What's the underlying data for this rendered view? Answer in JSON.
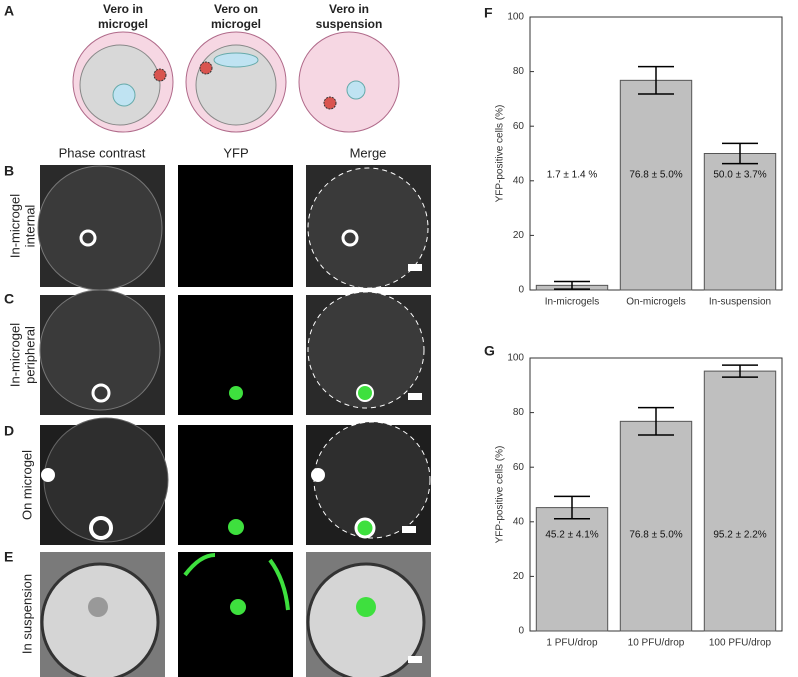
{
  "figure": {
    "panel_letters": [
      "A",
      "B",
      "C",
      "D",
      "E"
    ],
    "illustrations": [
      [
        "Vero in",
        "microgel"
      ],
      [
        "Vero on",
        "microgel"
      ],
      [
        "Vero in",
        "suspension"
      ]
    ],
    "columns": [
      "Phase contrast",
      "YFP",
      "Merge"
    ],
    "rows": [
      [
        "In-microgel",
        "internal"
      ],
      [
        "In-microgel",
        "peripheral"
      ],
      [
        "On microgel"
      ],
      [
        "In suspension"
      ]
    ]
  },
  "chart_data": [
    {
      "type": "bar",
      "panel": "F",
      "ylabel": "YFP-positive cells (%)",
      "categories": [
        "In-microgels",
        "On-microgels",
        "In-suspension"
      ],
      "values": [
        1.7,
        76.8,
        50.0
      ],
      "errors": [
        1.4,
        5.0,
        3.7
      ],
      "value_labels": [
        "1.7 ± 1.4 %",
        "76.8 ± 5.0%",
        "50.0 ± 3.7%"
      ],
      "color": "#bfbfbf",
      "ylim": [
        0,
        100
      ],
      "yticks": [
        0,
        20,
        40,
        60,
        80,
        100
      ]
    },
    {
      "type": "bar",
      "panel": "G",
      "ylabel": "YFP-positive cells (%)",
      "categories": [
        "1 PFU/drop",
        "10 PFU/drop",
        "100 PFU/drop"
      ],
      "values": [
        45.2,
        76.8,
        95.2
      ],
      "errors": [
        4.1,
        5.0,
        2.2
      ],
      "value_labels": [
        "45.2 ± 4.1%",
        "76.8 ± 5.0%",
        "95.2 ± 2.2%"
      ],
      "color": "#bfbfbf",
      "ylim": [
        0,
        100
      ],
      "yticks": [
        0,
        20,
        40,
        60,
        80,
        100
      ]
    }
  ]
}
